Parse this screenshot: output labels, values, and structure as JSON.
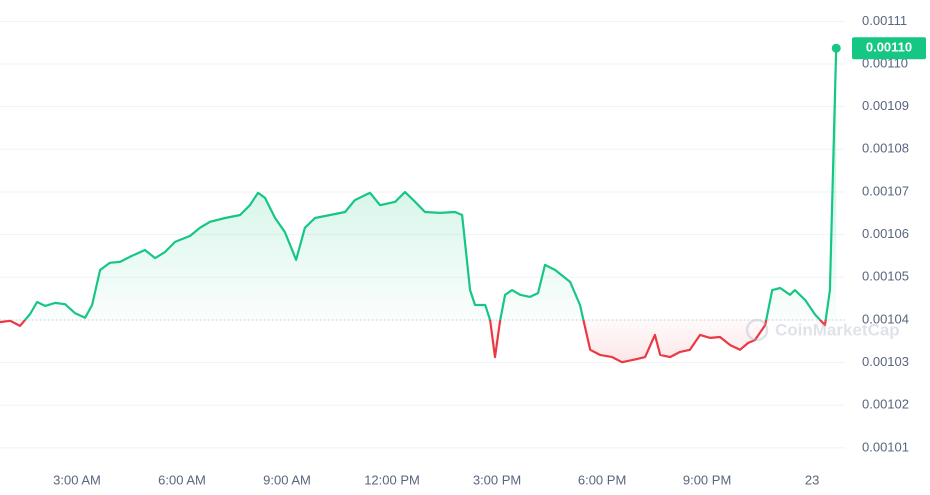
{
  "chart_data": {
    "type": "line",
    "watermark": "CoinMarketCap",
    "baseline": 0.00104,
    "last_label": "0.00110",
    "up_color": "#16c784",
    "down_color": "#ea3943",
    "xlim": [
      0.8,
      24.94
    ],
    "xticks": [
      {
        "value": 3,
        "label": "3:00 AM"
      },
      {
        "value": 6,
        "label": "6:00 AM"
      },
      {
        "value": 9,
        "label": "9:00 AM"
      },
      {
        "value": 12,
        "label": "12:00 PM"
      },
      {
        "value": 15,
        "label": "3:00 PM"
      },
      {
        "value": 18,
        "label": "6:00 PM"
      },
      {
        "value": 21,
        "label": "9:00 PM"
      },
      {
        "value": 24,
        "label": "23"
      }
    ],
    "ylim": [
      0.001006,
      0.001115
    ],
    "yticks": [
      0.00101,
      0.00102,
      0.00103,
      0.00104,
      0.00105,
      0.00106,
      0.00107,
      0.00108,
      0.00109,
      0.0011,
      0.00111
    ],
    "ytick_labels": [
      "0.00101",
      "0.00102",
      "0.00103",
      "0.00104",
      "0.00105",
      "0.00106",
      "0.00107",
      "0.00108",
      "0.00109",
      "0.00110",
      "0.00111"
    ],
    "grid": true,
    "x": [
      0.8,
      1.09,
      1.37,
      1.66,
      1.86,
      2.09,
      2.37,
      2.66,
      2.94,
      3.23,
      3.43,
      3.66,
      3.94,
      4.23,
      4.51,
      4.94,
      5.23,
      5.51,
      5.8,
      6.23,
      6.51,
      6.8,
      7.23,
      7.66,
      7.94,
      8.17,
      8.37,
      8.66,
      8.94,
      9.26,
      9.51,
      9.8,
      10.23,
      10.66,
      10.94,
      11.37,
      11.66,
      12.09,
      12.37,
      12.66,
      12.94,
      13.37,
      13.8,
      14,
      14.23,
      14.37,
      14.66,
      14.8,
      14.94,
      15.09,
      15.23,
      15.43,
      15.66,
      15.94,
      16.17,
      16.37,
      16.66,
      17.09,
      17.37,
      17.66,
      17.94,
      18.29,
      18.57,
      18.86,
      19.23,
      19.51,
      19.66,
      19.94,
      20.23,
      20.51,
      20.8,
      21.09,
      21.37,
      21.66,
      21.94,
      22.17,
      22.37,
      22.66,
      22.86,
      23.09,
      23.37,
      23.51,
      23.8,
      24.09,
      24.37,
      24.51,
      24.69
    ],
    "values": [
      0.0010395,
      0.0010398,
      0.0010386,
      0.0010414,
      0.0010442,
      0.0010433,
      0.001044,
      0.0010437,
      0.0010416,
      0.0010405,
      0.0010435,
      0.0010517,
      0.0010534,
      0.0010536,
      0.0010548,
      0.0010564,
      0.0010545,
      0.0010559,
      0.0010583,
      0.0010597,
      0.0010616,
      0.001063,
      0.0010639,
      0.0010646,
      0.0010669,
      0.0010698,
      0.0010686,
      0.0010639,
      0.0010606,
      0.0010541,
      0.0010616,
      0.0010639,
      0.0010646,
      0.0010653,
      0.0010681,
      0.0010698,
      0.0010669,
      0.0010677,
      0.00107,
      0.0010677,
      0.0010653,
      0.0010651,
      0.0010653,
      0.0010646,
      0.001047,
      0.0010435,
      0.0010435,
      0.00104,
      0.0010313,
      0.00104,
      0.0010459,
      0.001047,
      0.0010459,
      0.0010454,
      0.0010463,
      0.0010529,
      0.0010517,
      0.0010489,
      0.0010435,
      0.001033,
      0.0010318,
      0.0010313,
      0.0010301,
      0.0010306,
      0.0010313,
      0.0010365,
      0.0010318,
      0.0010313,
      0.0010325,
      0.001033,
      0.0010365,
      0.0010358,
      0.001036,
      0.0010341,
      0.001033,
      0.0010346,
      0.0010353,
      0.0010388,
      0.001047,
      0.0010475,
      0.0010459,
      0.001047,
      0.0010447,
      0.0010412,
      0.0010388,
      0.001047,
      0.0011037
    ]
  }
}
